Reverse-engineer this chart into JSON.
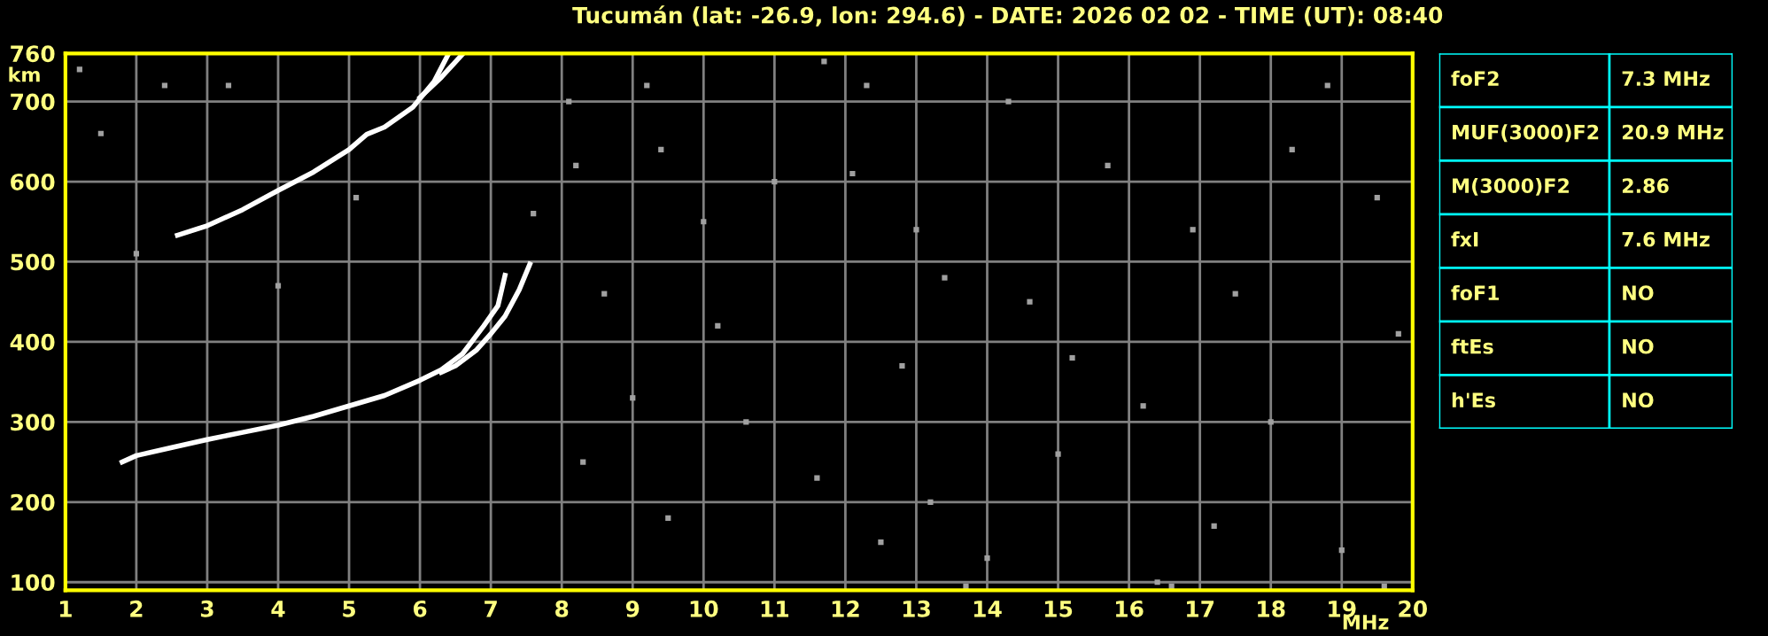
{
  "chart_data": [
    {
      "type": "line",
      "title": "Tucumán (lat: -26.9, lon: 294.6) - DATE: 2026 02 02 - TIME (UT): 08:40",
      "xlabel": "MHz",
      "ylabel": "km",
      "xlim": [
        1,
        20
      ],
      "xticks": [
        1,
        2,
        3,
        4,
        5,
        6,
        7,
        8,
        9,
        10,
        11,
        12,
        13,
        14,
        15,
        16,
        17,
        18,
        19,
        20
      ],
      "ylim": [
        90,
        760
      ],
      "yticks": [
        100,
        200,
        300,
        400,
        500,
        600,
        700,
        760
      ],
      "grid": true,
      "marker": "none",
      "line_style": "solid",
      "series": [
        {
          "color": "#ffffff",
          "x": [
            1.8,
            2.0,
            2.5,
            3.0,
            3.5,
            4.0,
            4.5,
            5.0,
            5.5,
            6.0,
            6.3,
            6.6,
            6.9,
            7.1,
            7.2
          ],
          "values": [
            250,
            258,
            268,
            278,
            287,
            296,
            307,
            320,
            333,
            352,
            365,
            385,
            420,
            445,
            483
          ]
        },
        {
          "color": "#ffffff",
          "x": [
            6.3,
            6.5,
            6.8,
            7.0,
            7.2,
            7.4,
            7.55
          ],
          "values": [
            362,
            370,
            390,
            410,
            432,
            465,
            497
          ]
        },
        {
          "color": "#ffffff",
          "x": [
            2.58,
            3.0,
            3.5,
            4.0,
            4.5,
            5.0,
            5.25,
            5.5,
            5.9,
            6.2,
            6.4
          ],
          "values": [
            533,
            545,
            565,
            589,
            612,
            640,
            659,
            668,
            693,
            725,
            759
          ]
        },
        {
          "color": "#ffffff",
          "x": [
            6.0,
            6.3,
            6.6
          ],
          "values": [
            705,
            730,
            759
          ]
        },
        {
          "type": "scatter",
          "marker": "square",
          "color": "#a0a0a0",
          "x": [
            1.2,
            1.5,
            2.0,
            2.4,
            3.3,
            4.0,
            5.1,
            7.6,
            8.1,
            8.2,
            8.6,
            9.2,
            9.4,
            10.0,
            11.0,
            11.7,
            12.1,
            12.3,
            13.0,
            13.4,
            14.3,
            14.6,
            15.2,
            15.7,
            16.2,
            16.9,
            17.5,
            18.3,
            18.8,
            19.5,
            19.8,
            8.3,
            9.5,
            10.6,
            11.6,
            12.5,
            13.2,
            14.0,
            15.0,
            16.4,
            17.2,
            18.0,
            19.0,
            19.6,
            13.7,
            16.6,
            12.8,
            10.2,
            9.0
          ],
          "values": [
            740,
            660,
            510,
            720,
            720,
            470,
            580,
            560,
            700,
            620,
            460,
            720,
            640,
            550,
            600,
            750,
            610,
            720,
            540,
            480,
            700,
            450,
            380,
            620,
            320,
            540,
            460,
            640,
            720,
            580,
            410,
            250,
            180,
            300,
            230,
            150,
            200,
            130,
            260,
            100,
            170,
            300,
            140,
            95,
            95,
            95,
            370,
            420,
            330
          ]
        }
      ]
    },
    {
      "type": "other",
      "annotations": [
        "foF2",
        "7.3 MHz",
        "MUF(3000)F2",
        "20.9 MHz",
        "M(3000)F2",
        "2.86",
        "fxI",
        "7.6 MHz",
        "foF1",
        "NO",
        "ftEs",
        "NO",
        "h'Es",
        "NO"
      ]
    }
  ]
}
